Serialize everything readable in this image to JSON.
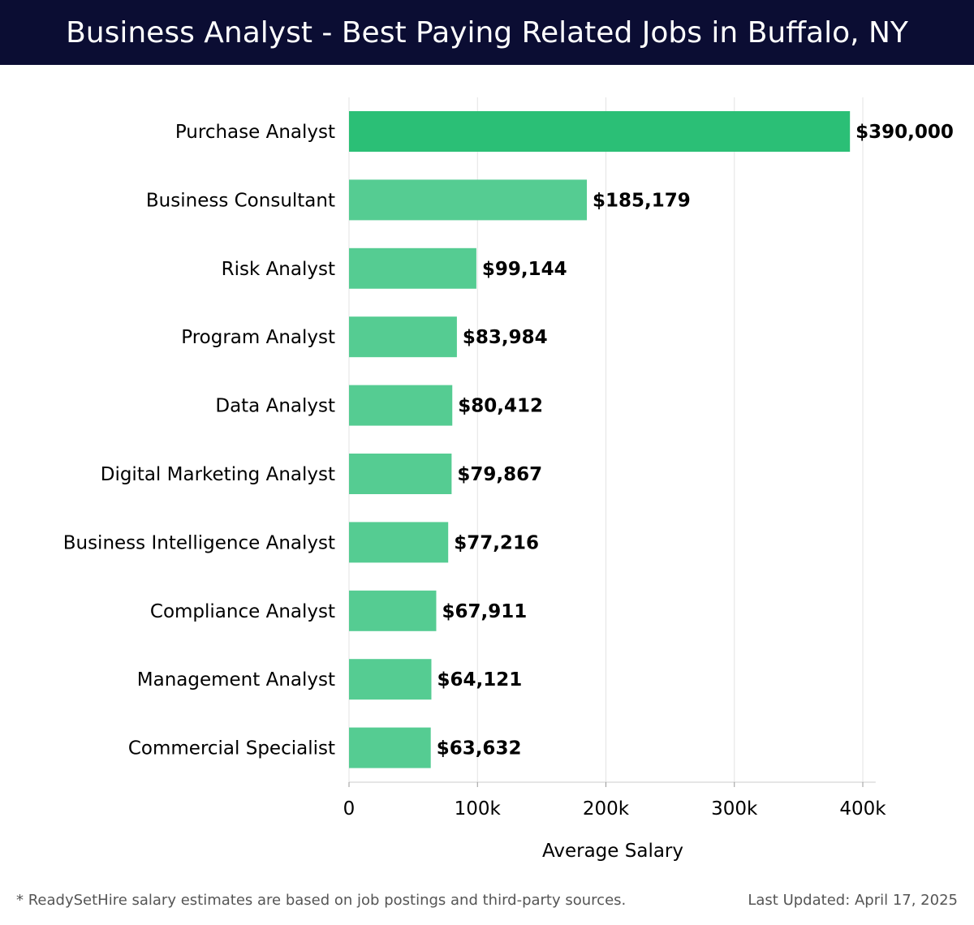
{
  "colors": {
    "header_bg": "#0b0d33",
    "bar_top": "#2bbf76",
    "bar_default": "#55cc92",
    "grid": "#e3e3e3"
  },
  "chart_data": {
    "type": "bar",
    "orientation": "horizontal",
    "title": "Business Analyst - Best Paying Related Jobs in Buffalo, NY",
    "categories": [
      "Purchase Analyst",
      "Business Consultant",
      "Risk Analyst",
      "Program Analyst",
      "Data Analyst",
      "Digital Marketing Analyst",
      "Business Intelligence Analyst",
      "Compliance Analyst",
      "Management Analyst",
      "Commercial Specialist"
    ],
    "values": [
      390000,
      185179,
      99144,
      83984,
      80412,
      79867,
      77216,
      67911,
      64121,
      63632
    ],
    "value_labels": [
      "$390,000",
      "$185,179",
      "$99,144",
      "$83,984",
      "$80,412",
      "$79,867",
      "$77,216",
      "$67,911",
      "$64,121",
      "$63,632"
    ],
    "xlabel": "Average Salary",
    "ylabel": "",
    "xlim": [
      0,
      410000
    ],
    "xticks": [
      0,
      100000,
      200000,
      300000,
      400000
    ],
    "xtick_labels": [
      "0",
      "100k",
      "200k",
      "300k",
      "400k"
    ],
    "grid": true
  },
  "footer": {
    "note": "* ReadySetHire salary estimates are based on job postings and third-party sources.",
    "updated": "Last Updated: April 17, 2025"
  }
}
